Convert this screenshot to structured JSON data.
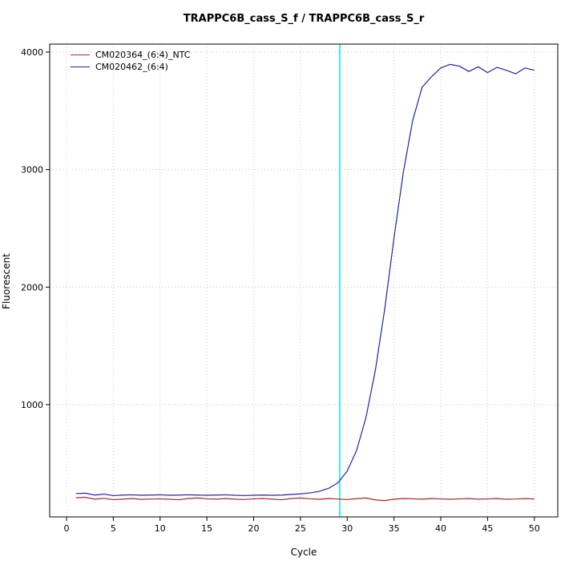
{
  "chart_data": {
    "type": "line",
    "title": "TRAPPC6B_cass_S_f / TRAPPC6B_cass_S_r",
    "xlabel": "Cycle",
    "ylabel": "Fluorescent",
    "xlim": [
      -1.8,
      52.5
    ],
    "ylim": [
      45,
      4068
    ],
    "xticks": [
      0,
      5,
      10,
      15,
      20,
      25,
      30,
      35,
      40,
      45,
      50
    ],
    "yticks": [
      1000,
      2000,
      3000,
      4000
    ],
    "grid": true,
    "grid_color": "#c6c6c6",
    "legend_position": "top-left",
    "threshold_line": {
      "x": 29.2,
      "color": "#00e5ee"
    },
    "x": [
      1,
      2,
      3,
      4,
      5,
      6,
      7,
      8,
      9,
      10,
      11,
      12,
      13,
      14,
      15,
      16,
      17,
      18,
      19,
      20,
      21,
      22,
      23,
      24,
      25,
      26,
      27,
      28,
      29,
      30,
      31,
      32,
      33,
      34,
      35,
      36,
      37,
      38,
      39,
      40,
      41,
      42,
      43,
      44,
      45,
      46,
      47,
      48,
      49,
      50
    ],
    "series": [
      {
        "name": "CM020364_(6:4)_NTC",
        "color": "#a52a2a",
        "values": [
          208,
          212,
          196,
          203,
          192,
          196,
          201,
          194,
          197,
          199,
          195,
          191,
          201,
          206,
          199,
          196,
          201,
          196,
          193,
          199,
          201,
          196,
          191,
          201,
          206,
          199,
          195,
          201,
          197,
          193,
          200,
          206,
          190,
          184,
          196,
          201,
          199,
          196,
          201,
          198,
          195,
          198,
          201,
          196,
          198,
          201,
          195,
          197,
          201,
          198
        ]
      },
      {
        "name": "CM020462_(6:4)",
        "color": "#2424a8",
        "values": [
          243,
          247,
          231,
          239,
          226,
          231,
          233,
          229,
          231,
          233,
          229,
          231,
          233,
          231,
          229,
          231,
          233,
          229,
          227,
          229,
          231,
          229,
          231,
          236,
          241,
          249,
          262,
          288,
          335,
          435,
          610,
          890,
          1290,
          1810,
          2420,
          2980,
          3420,
          3700,
          3790,
          3865,
          3895,
          3880,
          3835,
          3875,
          3825,
          3870,
          3845,
          3815,
          3865,
          3845
        ]
      }
    ]
  }
}
